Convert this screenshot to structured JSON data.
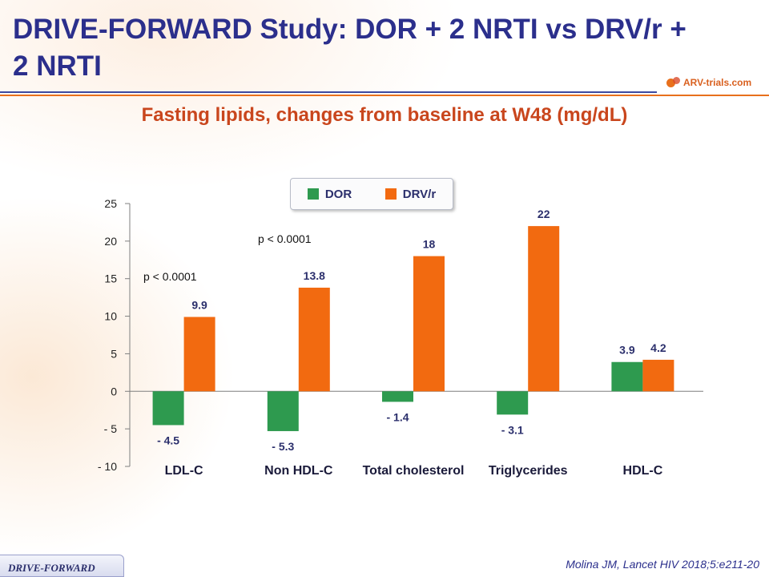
{
  "slide": {
    "title": "DRIVE-FORWARD Study: DOR + 2 NRTI vs DRV/r + 2 NRTI",
    "logo_text": "ARV-trials.com",
    "footer_label": "DRIVE-FORWARD",
    "citation": "Molina JM, Lancet HIV 2018;5:e211-20"
  },
  "colors": {
    "dor": "#2e9a4f",
    "drvr": "#f26a10",
    "title": "#2b2f8c",
    "subtitle": "#c9461d"
  },
  "chart_data": {
    "type": "bar",
    "title": "Fasting lipids, changes from baseline at W48 (mg/dL)",
    "categories": [
      "LDL-C",
      "Non HDL-C",
      "Total cholesterol",
      "Triglycerides",
      "HDL-C"
    ],
    "series": [
      {
        "name": "DOR",
        "values": [
          -4.5,
          -5.3,
          -1.4,
          -3.1,
          3.9
        ],
        "labels": [
          "- 4.5",
          "- 5.3",
          "- 1.4",
          "- 3.1",
          "3.9"
        ]
      },
      {
        "name": "DRV/r",
        "values": [
          9.9,
          13.8,
          18,
          22,
          4.2
        ],
        "labels": [
          "9.9",
          "13.8",
          "18",
          "22",
          "4.2"
        ]
      }
    ],
    "ylim": [
      -10,
      25
    ],
    "yticks": [
      25,
      20,
      15,
      10,
      5,
      0,
      -5,
      -10
    ],
    "ytick_labels": [
      "25",
      "20",
      "15",
      "10",
      "5",
      "0",
      "- 5",
      "- 10"
    ],
    "annotations": [
      "p < 0.0001",
      "p < 0.0001"
    ],
    "legend_position": "top-center",
    "grid": false
  }
}
